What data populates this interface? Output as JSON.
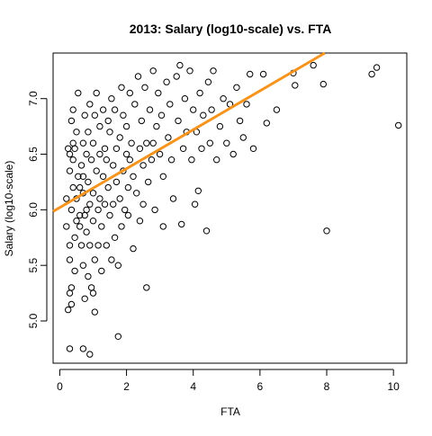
{
  "chart_data": {
    "type": "scatter",
    "title": "2013: Salary (log10-scale) vs. FTA",
    "xlabel": "FTA",
    "ylabel": "Salary (log10-scale)",
    "xlim": [
      -0.2,
      10.4
    ],
    "ylim": [
      4.62,
      7.41
    ],
    "x_ticks": [
      0,
      2,
      4,
      6,
      8,
      10
    ],
    "y_ticks": [
      5.0,
      5.5,
      6.0,
      6.5,
      7.0
    ],
    "x_tick_labels": [
      "0",
      "2",
      "4",
      "6",
      "8",
      "10"
    ],
    "y_tick_labels": [
      "5.0",
      "5.5",
      "6.0",
      "6.5",
      "7.0"
    ],
    "grid": false,
    "point_style": "open-circle",
    "point_color": "#000000",
    "fit_line": {
      "intercept": 6.02,
      "slope": 0.175,
      "color": "#F7941D"
    },
    "points": [
      [
        0.2,
        6.1
      ],
      [
        0.25,
        6.55
      ],
      [
        0.2,
        5.85
      ],
      [
        0.3,
        6.5
      ],
      [
        0.3,
        6.35
      ],
      [
        0.35,
        6.8
      ],
      [
        0.3,
        5.68
      ],
      [
        0.35,
        6.0
      ],
      [
        0.4,
        6.6
      ],
      [
        0.4,
        6.2
      ],
      [
        0.45,
        5.75
      ],
      [
        0.3,
        5.55
      ],
      [
        0.35,
        5.3
      ],
      [
        0.3,
        5.25
      ],
      [
        0.25,
        5.1
      ],
      [
        0.35,
        5.15
      ],
      [
        0.4,
        6.45
      ],
      [
        0.4,
        6.9
      ],
      [
        0.3,
        4.75
      ],
      [
        0.5,
        6.1
      ],
      [
        0.5,
        5.9
      ],
      [
        0.55,
        6.3
      ],
      [
        0.45,
        5.45
      ],
      [
        0.45,
        6.55
      ],
      [
        0.5,
        6.7
      ],
      [
        0.55,
        7.05
      ],
      [
        0.6,
        6.2
      ],
      [
        0.6,
        5.85
      ],
      [
        0.65,
        6.4
      ],
      [
        0.6,
        5.95
      ],
      [
        0.65,
        5.68
      ],
      [
        0.7,
        6.15
      ],
      [
        0.7,
        6.6
      ],
      [
        0.75,
        6.85
      ],
      [
        0.7,
        6.3
      ],
      [
        0.75,
        5.95
      ],
      [
        0.7,
        5.5
      ],
      [
        0.75,
        5.2
      ],
      [
        0.7,
        4.75
      ],
      [
        0.8,
        6.0
      ],
      [
        0.8,
        6.5
      ],
      [
        0.85,
        6.7
      ],
      [
        0.8,
        5.8
      ],
      [
        0.85,
        5.4
      ],
      [
        0.85,
        6.25
      ],
      [
        0.9,
        6.05
      ],
      [
        0.9,
        6.95
      ],
      [
        0.95,
        6.45
      ],
      [
        0.9,
        5.68
      ],
      [
        0.95,
        5.3
      ],
      [
        0.9,
        4.7
      ],
      [
        1.0,
        6.15
      ],
      [
        1.0,
        6.6
      ],
      [
        1.05,
        6.85
      ],
      [
        1.0,
        5.9
      ],
      [
        1.05,
        5.55
      ],
      [
        1.0,
        5.25
      ],
      [
        1.05,
        5.08
      ],
      [
        1.1,
        6.35
      ],
      [
        1.1,
        7.05
      ],
      [
        1.15,
        6.0
      ],
      [
        1.15,
        5.68
      ],
      [
        1.2,
        6.5
      ],
      [
        1.2,
        6.75
      ],
      [
        1.2,
        6.1
      ],
      [
        1.25,
        5.85
      ],
      [
        1.25,
        5.45
      ],
      [
        1.3,
        6.3
      ],
      [
        1.3,
        6.9
      ],
      [
        1.35,
        6.55
      ],
      [
        1.35,
        6.05
      ],
      [
        1.4,
        5.68
      ],
      [
        1.4,
        6.45
      ],
      [
        1.45,
        6.8
      ],
      [
        1.45,
        6.2
      ],
      [
        1.5,
        5.95
      ],
      [
        1.5,
        6.7
      ],
      [
        1.55,
        7.0
      ],
      [
        1.55,
        5.55
      ],
      [
        1.6,
        6.4
      ],
      [
        1.6,
        6.05
      ],
      [
        1.65,
        6.9
      ],
      [
        1.65,
        5.75
      ],
      [
        1.7,
        6.25
      ],
      [
        1.7,
        6.55
      ],
      [
        1.75,
        5.5
      ],
      [
        1.75,
        4.86
      ],
      [
        1.8,
        6.65
      ],
      [
        1.8,
        6.1
      ],
      [
        1.85,
        7.1
      ],
      [
        1.85,
        5.85
      ],
      [
        1.9,
        6.35
      ],
      [
        1.9,
        6.85
      ],
      [
        1.95,
        6.0
      ],
      [
        2.0,
        6.5
      ],
      [
        2.0,
        6.75
      ],
      [
        2.05,
        6.2
      ],
      [
        2.05,
        5.95
      ],
      [
        2.1,
        7.05
      ],
      [
        2.1,
        6.45
      ],
      [
        2.15,
        6.6
      ],
      [
        2.2,
        5.65
      ],
      [
        2.2,
        6.3
      ],
      [
        2.25,
        6.95
      ],
      [
        2.3,
        6.15
      ],
      [
        2.35,
        7.2
      ],
      [
        2.4,
        6.55
      ],
      [
        2.4,
        5.9
      ],
      [
        2.45,
        6.8
      ],
      [
        2.5,
        6.4
      ],
      [
        2.5,
        6.05
      ],
      [
        2.55,
        7.1
      ],
      [
        2.6,
        5.3
      ],
      [
        2.6,
        6.6
      ],
      [
        2.65,
        6.25
      ],
      [
        2.7,
        6.9
      ],
      [
        2.75,
        6.45
      ],
      [
        2.8,
        7.25
      ],
      [
        2.8,
        6.6
      ],
      [
        2.85,
        6.0
      ],
      [
        2.9,
        6.75
      ],
      [
        2.95,
        7.05
      ],
      [
        3.0,
        6.5
      ],
      [
        3.05,
        6.85
      ],
      [
        3.1,
        5.85
      ],
      [
        3.1,
        6.3
      ],
      [
        3.2,
        7.15
      ],
      [
        3.25,
        6.65
      ],
      [
        3.3,
        6.95
      ],
      [
        3.35,
        6.45
      ],
      [
        3.4,
        6.1
      ],
      [
        3.5,
        7.2
      ],
      [
        3.55,
        6.8
      ],
      [
        3.6,
        7.3
      ],
      [
        3.65,
        5.87
      ],
      [
        3.7,
        6.55
      ],
      [
        3.75,
        7.0
      ],
      [
        3.8,
        6.7
      ],
      [
        3.9,
        7.25
      ],
      [
        3.95,
        6.45
      ],
      [
        4.0,
        6.9
      ],
      [
        4.05,
        6.05
      ],
      [
        4.1,
        6.7
      ],
      [
        4.15,
        6.17
      ],
      [
        4.2,
        7.05
      ],
      [
        4.25,
        6.55
      ],
      [
        4.3,
        6.85
      ],
      [
        4.4,
        5.81
      ],
      [
        4.45,
        7.15
      ],
      [
        4.5,
        6.6
      ],
      [
        4.55,
        6.9
      ],
      [
        4.6,
        7.25
      ],
      [
        4.7,
        6.45
      ],
      [
        4.8,
        6.75
      ],
      [
        4.9,
        7.0
      ],
      [
        5.0,
        6.6
      ],
      [
        5.1,
        6.95
      ],
      [
        5.2,
        6.5
      ],
      [
        5.3,
        7.1
      ],
      [
        5.4,
        6.8
      ],
      [
        5.5,
        6.65
      ],
      [
        5.6,
        6.95
      ],
      [
        5.7,
        7.22
      ],
      [
        5.8,
        6.55
      ],
      [
        6.1,
        7.22
      ],
      [
        6.2,
        6.78
      ],
      [
        6.5,
        6.9
      ],
      [
        7.0,
        7.23
      ],
      [
        7.05,
        7.12
      ],
      [
        7.6,
        7.3
      ],
      [
        7.9,
        7.13
      ],
      [
        8.0,
        5.81
      ],
      [
        9.35,
        7.22
      ],
      [
        9.5,
        7.28
      ],
      [
        10.15,
        6.76
      ]
    ]
  }
}
